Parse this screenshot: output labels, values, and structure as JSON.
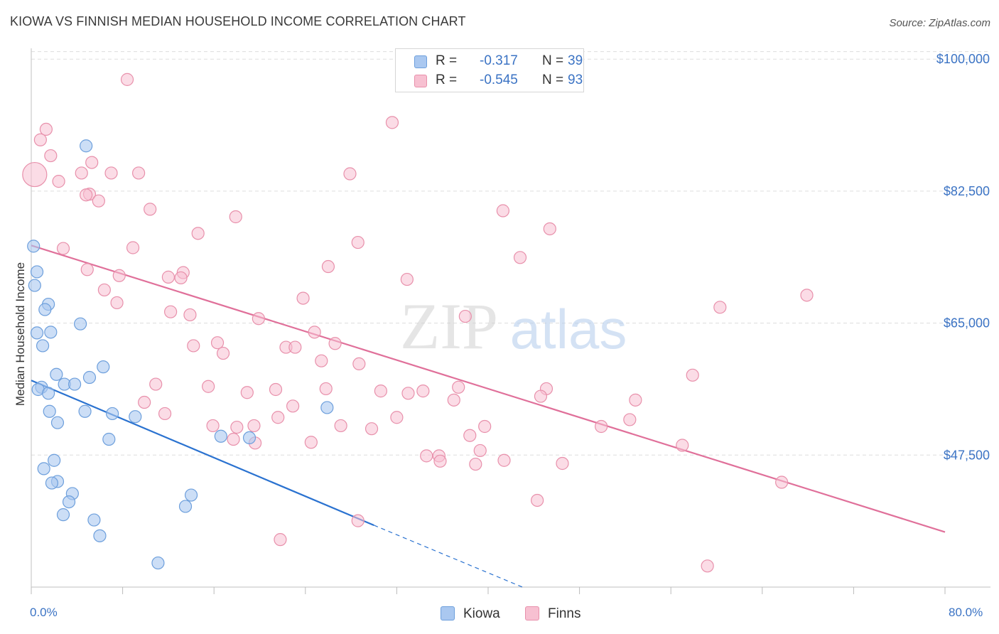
{
  "title": "KIOWA VS FINNISH MEDIAN HOUSEHOLD INCOME CORRELATION CHART",
  "source": "Source: ZipAtlas.com",
  "watermark": {
    "zip": "ZIP",
    "atlas": "atlas"
  },
  "legend": {
    "kiowa": {
      "r_label": "R =",
      "r_value": "-0.317",
      "n_label": "N =",
      "n_value": "39"
    },
    "finns": {
      "r_label": "R =",
      "r_value": "-0.545",
      "n_label": "N =",
      "n_value": "93"
    }
  },
  "colors": {
    "kiowa_fill": "#aac8f0",
    "kiowa_stroke": "#6d9fdc",
    "kiowa_line": "#2a72d0",
    "finns_fill": "#f7c0d1",
    "finns_stroke": "#e890ab",
    "finns_line": "#e0709a",
    "axis_text": "#3b73c4",
    "grid": "#dddddd"
  },
  "chart_data": {
    "type": "scatter",
    "title": "KIOWA VS FINNISH MEDIAN HOUSEHOLD INCOME CORRELATION CHART",
    "xlabel": "",
    "ylabel": "Median Household Income",
    "xlim": [
      0,
      80
    ],
    "ylim": [
      30000,
      102000
    ],
    "x_tick_labels": [
      "0.0%",
      "80.0%"
    ],
    "y_ticks": [
      {
        "value": 47500,
        "label": "$47,500"
      },
      {
        "value": 65000,
        "label": "$65,000"
      },
      {
        "value": 82500,
        "label": "$82,500"
      },
      {
        "value": 100000,
        "label": "$100,000"
      }
    ],
    "grid": true,
    "series": [
      {
        "name": "Kiowa",
        "points": [
          [
            0.2,
            75200
          ],
          [
            0.5,
            71800
          ],
          [
            0.3,
            70000
          ],
          [
            1.5,
            67500
          ],
          [
            1.2,
            66800
          ],
          [
            4.3,
            64900
          ],
          [
            0.5,
            63700
          ],
          [
            1.7,
            63800
          ],
          [
            1.0,
            62000
          ],
          [
            6.3,
            59200
          ],
          [
            2.2,
            58200
          ],
          [
            5.1,
            57800
          ],
          [
            0.9,
            56500
          ],
          [
            0.6,
            56200
          ],
          [
            2.9,
            56900
          ],
          [
            3.8,
            56900
          ],
          [
            1.5,
            55700
          ],
          [
            1.6,
            53300
          ],
          [
            4.7,
            53300
          ],
          [
            7.1,
            53000
          ],
          [
            9.1,
            52600
          ],
          [
            2.3,
            51800
          ],
          [
            16.6,
            50000
          ],
          [
            19.1,
            49800
          ],
          [
            6.8,
            49600
          ],
          [
            25.9,
            53800
          ],
          [
            2.0,
            46800
          ],
          [
            1.1,
            45700
          ],
          [
            2.3,
            44000
          ],
          [
            1.8,
            43800
          ],
          [
            3.6,
            42400
          ],
          [
            3.3,
            41300
          ],
          [
            14.0,
            42200
          ],
          [
            13.5,
            40700
          ],
          [
            2.8,
            39600
          ],
          [
            5.5,
            38900
          ],
          [
            6.0,
            36800
          ],
          [
            11.1,
            33200
          ],
          [
            4.8,
            88500
          ]
        ]
      },
      {
        "name": "Finns",
        "points": [
          [
            0.3,
            84700
          ],
          [
            8.4,
            97300
          ],
          [
            1.3,
            90700
          ],
          [
            0.8,
            89300
          ],
          [
            1.7,
            87200
          ],
          [
            31.6,
            91600
          ],
          [
            5.3,
            86300
          ],
          [
            4.4,
            84900
          ],
          [
            7.0,
            84900
          ],
          [
            9.4,
            84900
          ],
          [
            27.9,
            84800
          ],
          [
            2.4,
            83800
          ],
          [
            5.1,
            82100
          ],
          [
            4.8,
            82000
          ],
          [
            5.9,
            81200
          ],
          [
            10.4,
            80100
          ],
          [
            41.3,
            79900
          ],
          [
            17.9,
            79100
          ],
          [
            45.4,
            77500
          ],
          [
            14.6,
            76900
          ],
          [
            28.6,
            75700
          ],
          [
            8.9,
            75000
          ],
          [
            2.8,
            74900
          ],
          [
            42.8,
            73700
          ],
          [
            26.0,
            72500
          ],
          [
            4.9,
            72100
          ],
          [
            13.3,
            71700
          ],
          [
            7.7,
            71300
          ],
          [
            12.0,
            71100
          ],
          [
            13.1,
            71000
          ],
          [
            32.9,
            70800
          ],
          [
            6.4,
            69400
          ],
          [
            67.9,
            68700
          ],
          [
            23.8,
            68300
          ],
          [
            7.5,
            67700
          ],
          [
            60.3,
            67100
          ],
          [
            12.2,
            66500
          ],
          [
            38.0,
            65900
          ],
          [
            13.9,
            66100
          ],
          [
            19.9,
            65600
          ],
          [
            24.8,
            63800
          ],
          [
            16.3,
            62400
          ],
          [
            26.6,
            62300
          ],
          [
            14.2,
            62000
          ],
          [
            22.3,
            61800
          ],
          [
            23.1,
            61800
          ],
          [
            16.8,
            61000
          ],
          [
            25.4,
            60000
          ],
          [
            28.7,
            59600
          ],
          [
            57.9,
            58100
          ],
          [
            10.9,
            56900
          ],
          [
            15.5,
            56600
          ],
          [
            25.8,
            56300
          ],
          [
            37.4,
            56500
          ],
          [
            45.1,
            56300
          ],
          [
            21.4,
            56200
          ],
          [
            30.6,
            56000
          ],
          [
            34.3,
            56000
          ],
          [
            18.9,
            55800
          ],
          [
            33.0,
            55700
          ],
          [
            44.6,
            55300
          ],
          [
            52.9,
            54800
          ],
          [
            37.0,
            54800
          ],
          [
            9.9,
            54500
          ],
          [
            22.9,
            54000
          ],
          [
            11.7,
            53000
          ],
          [
            21.6,
            52500
          ],
          [
            32.0,
            52500
          ],
          [
            52.4,
            52200
          ],
          [
            15.9,
            51400
          ],
          [
            18.0,
            51200
          ],
          [
            19.5,
            51400
          ],
          [
            27.1,
            51400
          ],
          [
            29.8,
            51000
          ],
          [
            49.9,
            51300
          ],
          [
            39.7,
            51300
          ],
          [
            38.4,
            50100
          ],
          [
            17.7,
            49600
          ],
          [
            19.6,
            49100
          ],
          [
            24.5,
            49200
          ],
          [
            57.0,
            48800
          ],
          [
            39.3,
            48100
          ],
          [
            34.6,
            47400
          ],
          [
            35.7,
            47400
          ],
          [
            35.8,
            46700
          ],
          [
            41.4,
            46800
          ],
          [
            38.9,
            46300
          ],
          [
            46.5,
            46400
          ],
          [
            65.7,
            43900
          ],
          [
            44.3,
            41500
          ],
          [
            28.6,
            38800
          ],
          [
            21.8,
            36300
          ],
          [
            59.2,
            32800
          ]
        ]
      }
    ],
    "trendlines": [
      {
        "series": "Kiowa",
        "x_start": 0,
        "y_start": 57400,
        "x_end": 30,
        "y_end": 38200,
        "dashed_to_x": 43,
        "dashed_to_y": 30000
      },
      {
        "series": "Finns",
        "x_start": 0,
        "y_start": 75300,
        "x_end": 80,
        "y_end": 37300
      }
    ]
  }
}
